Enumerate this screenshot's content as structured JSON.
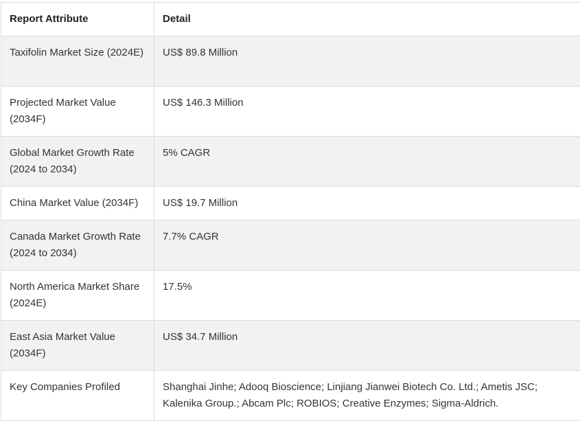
{
  "table": {
    "headers": [
      "Report Attribute",
      "Detail"
    ],
    "rows": [
      {
        "attribute": "Taxifolin Market Size (2024E)",
        "detail": "US$ 89.8 Million"
      },
      {
        "attribute": "Projected Market Value (2034F)",
        "detail": "US$ 146.3 Million"
      },
      {
        "attribute": "Global Market Growth Rate (2024 to 2034)",
        "detail": "5% CAGR"
      },
      {
        "attribute": "China Market Value (2034F)",
        "detail": "US$ 19.7 Million"
      },
      {
        "attribute": "Canada Market Growth Rate (2024 to 2034)",
        "detail": "7.7% CAGR"
      },
      {
        "attribute": "North America Market Share (2024E)",
        "detail": "17.5%"
      },
      {
        "attribute": "East Asia Market Value (2034F)",
        "detail": "US$ 34.7 Million"
      },
      {
        "attribute": "Key Companies Profiled",
        "detail": "Shanghai Jinhe; Adooq Bioscience; Linjiang Jianwei Biotech Co. Ltd.; Ametis JSC; Kalenika Group.; Abcam Plc; ROBIOS; Creative Enzymes; Sigma-Aldrich."
      }
    ]
  }
}
